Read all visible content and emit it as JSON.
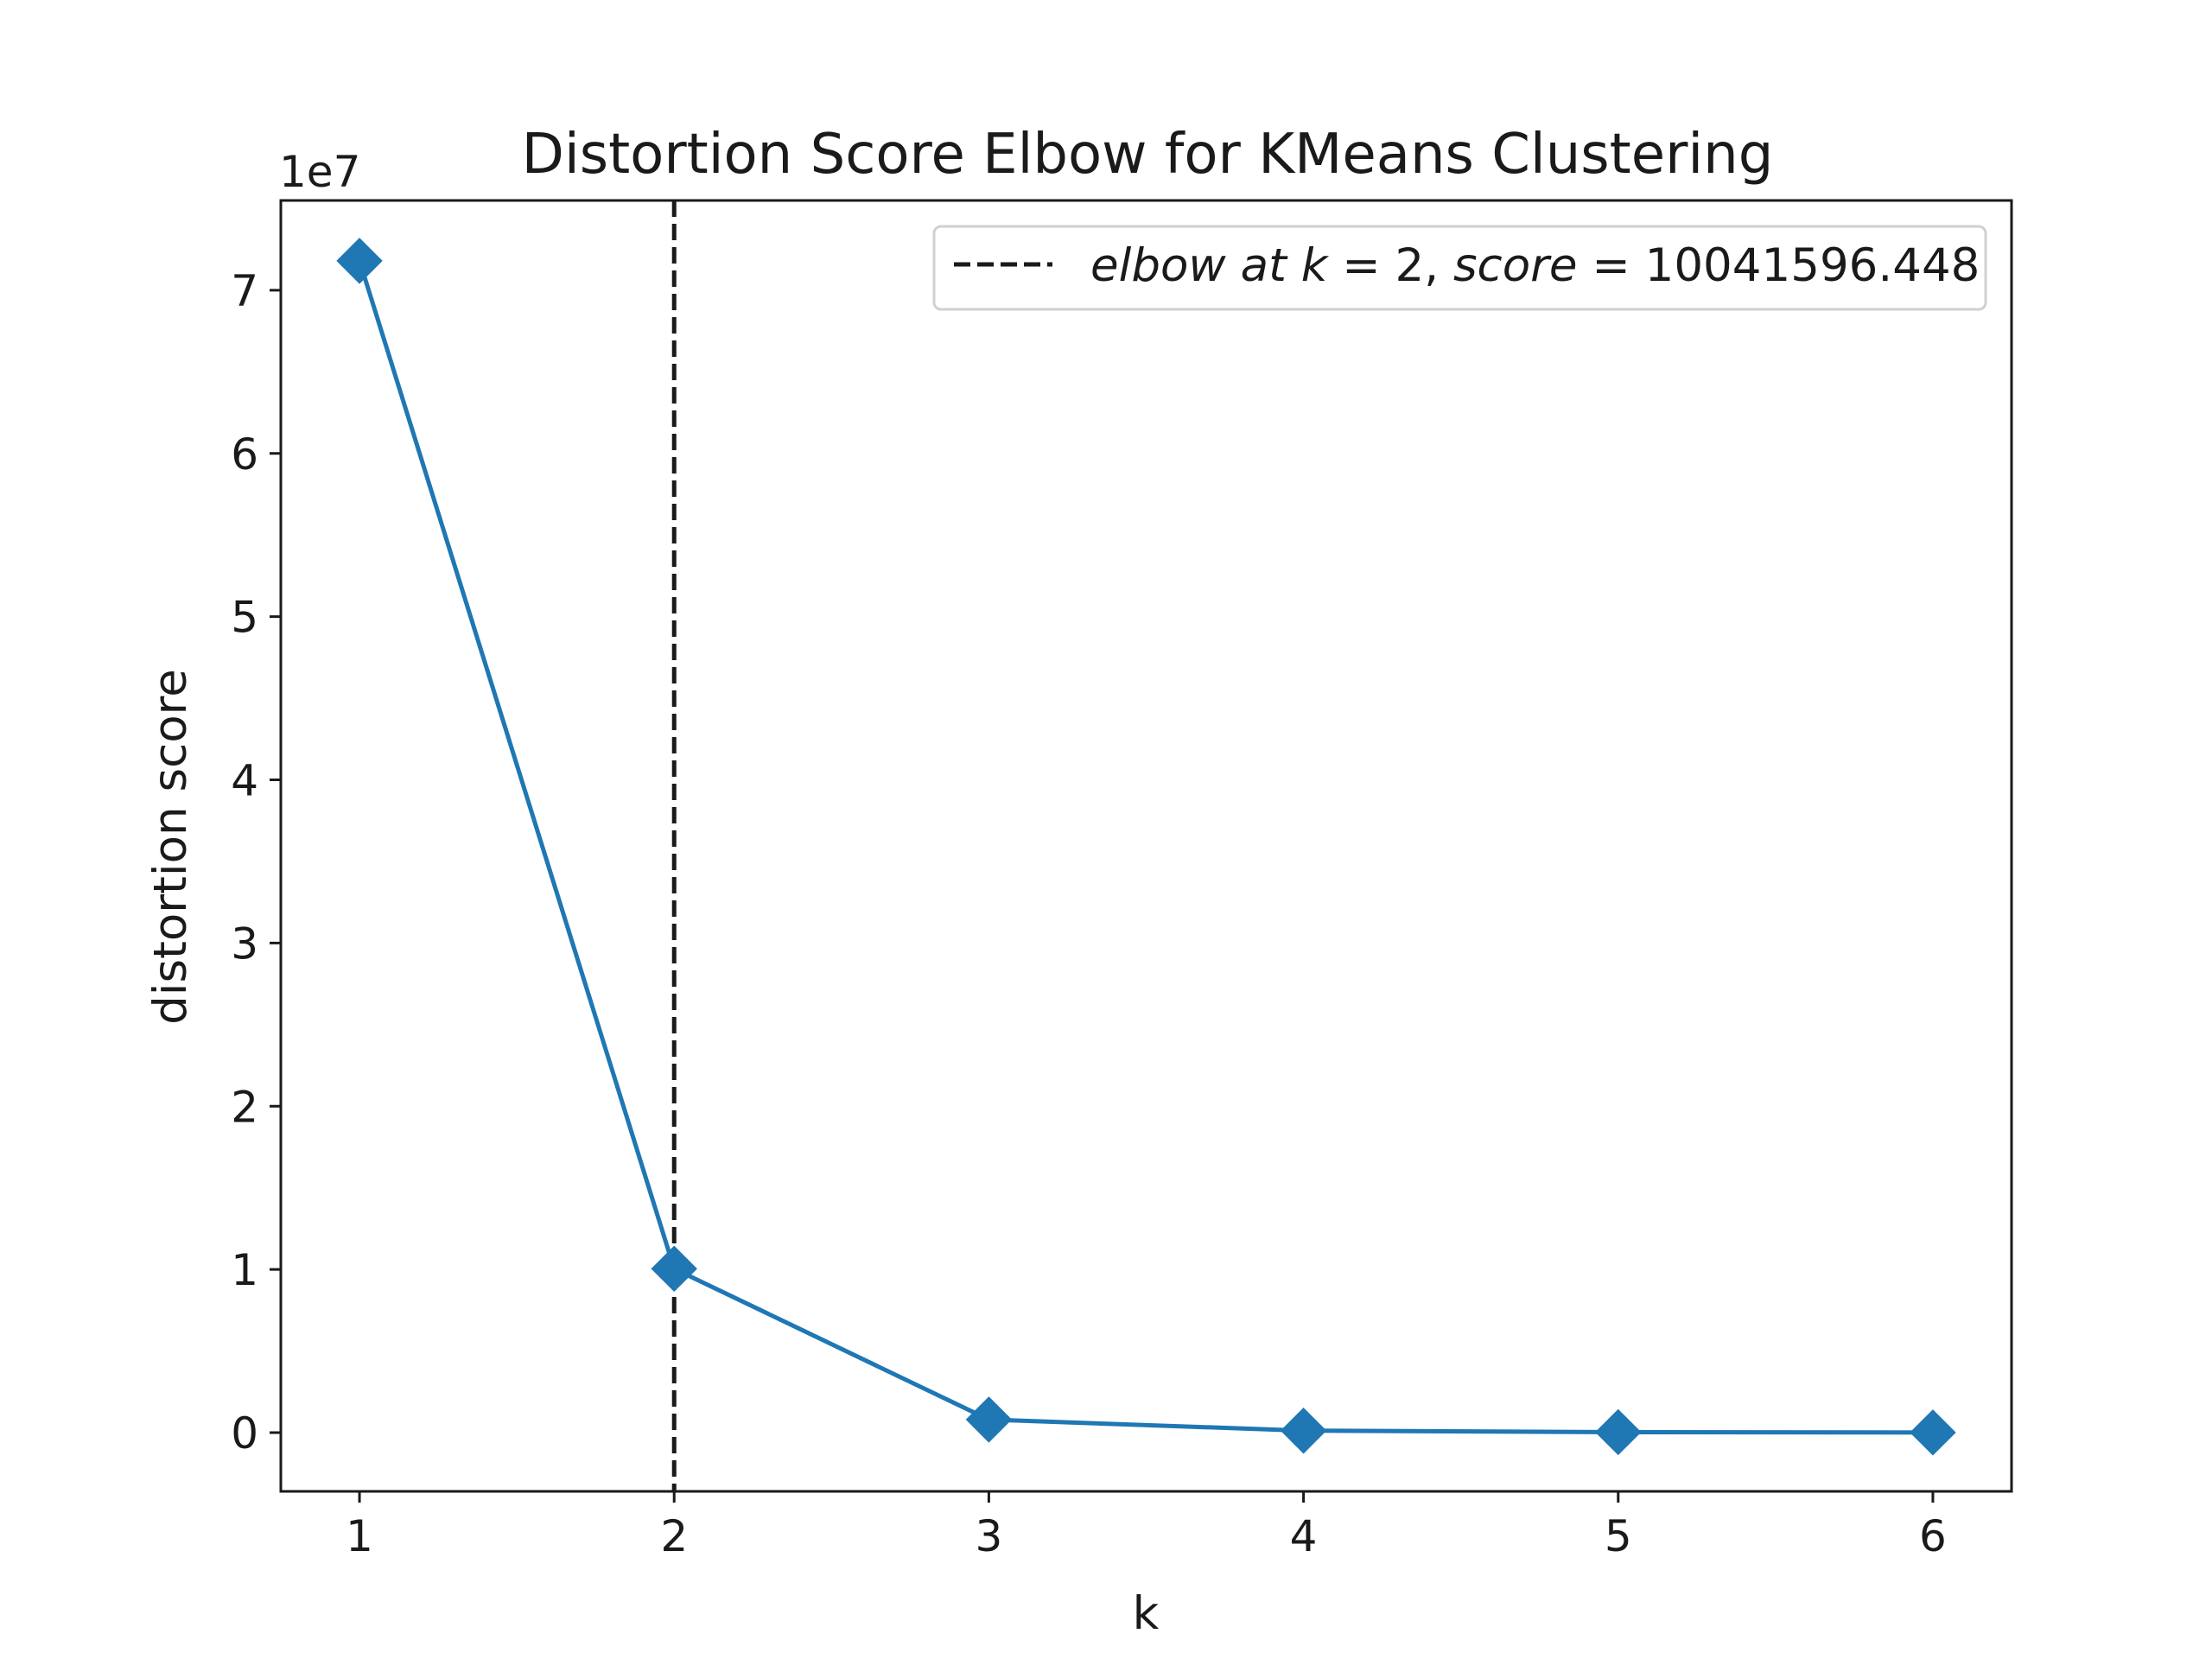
{
  "chart_data": {
    "type": "line",
    "title": "Distortion Score Elbow for KMeans Clustering",
    "xlabel": "k",
    "ylabel": "distortion score",
    "y_offset_label": "1e7",
    "x": [
      1,
      2,
      3,
      4,
      5,
      6
    ],
    "series": [
      {
        "values": [
          71800000,
          10041596.448,
          800000,
          120000,
          30000,
          10000
        ],
        "color": "#1f77b4",
        "marker": "diamond"
      }
    ],
    "xlim": [
      0.75,
      6.25
    ],
    "ylim": [
      -3600000,
      75500000
    ],
    "x_ticks": [
      1,
      2,
      3,
      4,
      5,
      6
    ],
    "x_tick_labels": [
      "1",
      "2",
      "3",
      "4",
      "5",
      "6"
    ],
    "y_ticks": [
      0,
      10000000,
      20000000,
      30000000,
      40000000,
      50000000,
      60000000,
      70000000
    ],
    "y_tick_labels": [
      "0",
      "1",
      "2",
      "3",
      "4",
      "5",
      "6",
      "7"
    ],
    "elbow": {
      "k": 2,
      "line_style": "dashed",
      "color": "#1a1a1a"
    },
    "legend": {
      "placement": "top-right",
      "italic_a": "elbow at k",
      "eq_a": " = 2, ",
      "italic_b": "score",
      "eq_b": " = 10041596.448"
    },
    "grid": false
  }
}
